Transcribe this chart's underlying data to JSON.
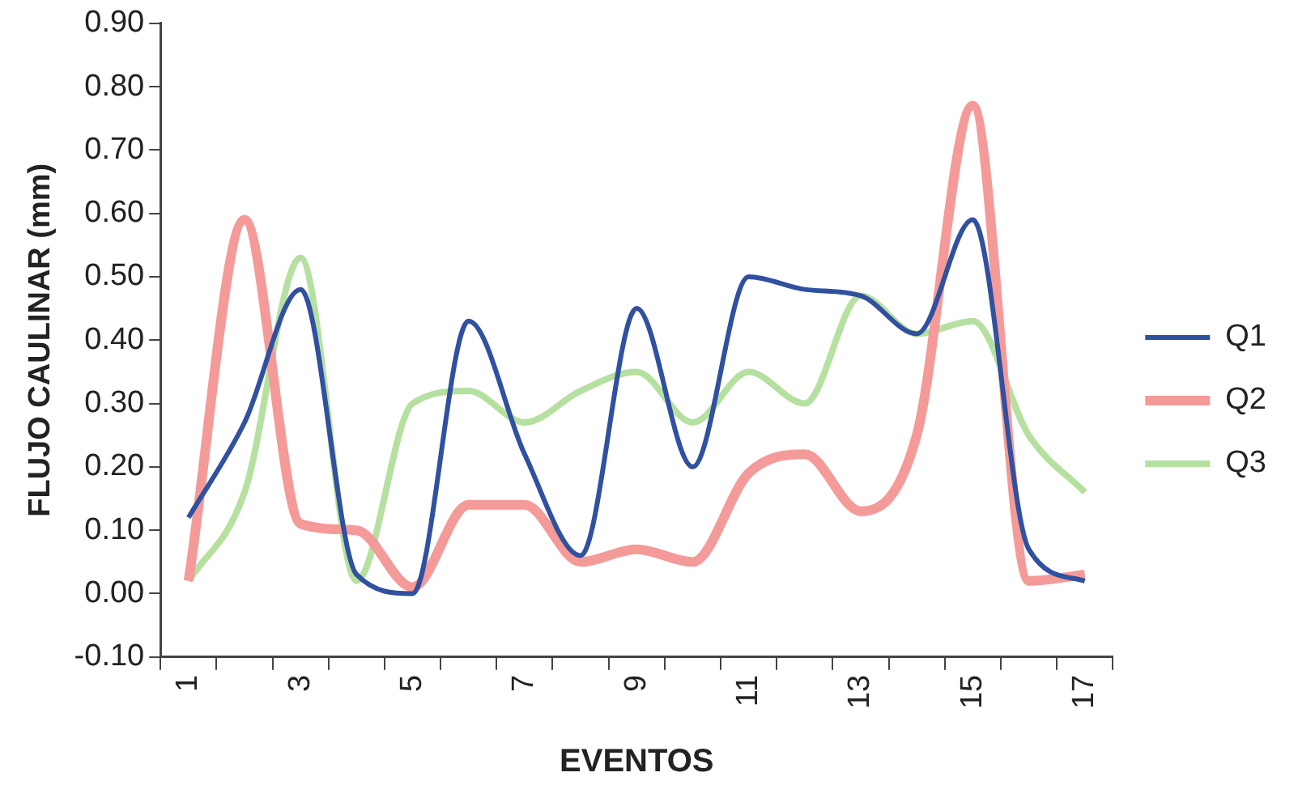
{
  "chart_data": {
    "type": "line",
    "xlabel": "EVENTOS",
    "ylabel": "FLUJO CAULINAR (mm)",
    "categories": [
      "1",
      null,
      "3",
      null,
      "5",
      null,
      "7",
      null,
      "9",
      null,
      "11",
      null,
      "13",
      null,
      "15",
      null,
      "17"
    ],
    "ylim": [
      -0.1,
      0.9
    ],
    "yticks": [
      {
        "value": -0.1,
        "label": "-0.10"
      },
      {
        "value": 0,
        "label": "0.00"
      },
      {
        "value": 0.1,
        "label": "0.10"
      },
      {
        "value": 0.2,
        "label": "0.20"
      },
      {
        "value": 0.3,
        "label": "0.30"
      },
      {
        "value": 0.4,
        "label": "0.40"
      },
      {
        "value": 0.5,
        "label": "0.50"
      },
      {
        "value": 0.6,
        "label": "0.60"
      },
      {
        "value": 0.7,
        "label": "0.70"
      },
      {
        "value": 0.8,
        "label": "0.80"
      },
      {
        "value": 0.9,
        "label": "0.90"
      }
    ],
    "grid": false,
    "legend": "right",
    "marker": "none",
    "line_style": "solid",
    "series": [
      {
        "name": "Q1",
        "color": "#3050a0",
        "values": [
          0.12,
          0.27,
          0.48,
          0.03,
          0.0,
          0.43,
          0.22,
          0.06,
          0.45,
          0.2,
          0.5,
          0.48,
          0.47,
          0.41,
          0.59,
          0.07,
          0.02
        ]
      },
      {
        "name": "Q2",
        "color": "#f49a98",
        "values": [
          0.02,
          0.59,
          0.11,
          0.1,
          0.01,
          0.14,
          0.14,
          0.05,
          0.07,
          0.05,
          0.19,
          0.22,
          0.13,
          0.25,
          0.77,
          0.02,
          0.03
        ]
      },
      {
        "name": "Q3",
        "color": "#b5e0a0",
        "values": [
          0.02,
          0.16,
          0.53,
          0.02,
          0.3,
          0.32,
          0.27,
          0.32,
          0.35,
          0.27,
          0.35,
          0.3,
          0.47,
          0.41,
          0.43,
          0.25,
          0.16
        ]
      }
    ]
  }
}
